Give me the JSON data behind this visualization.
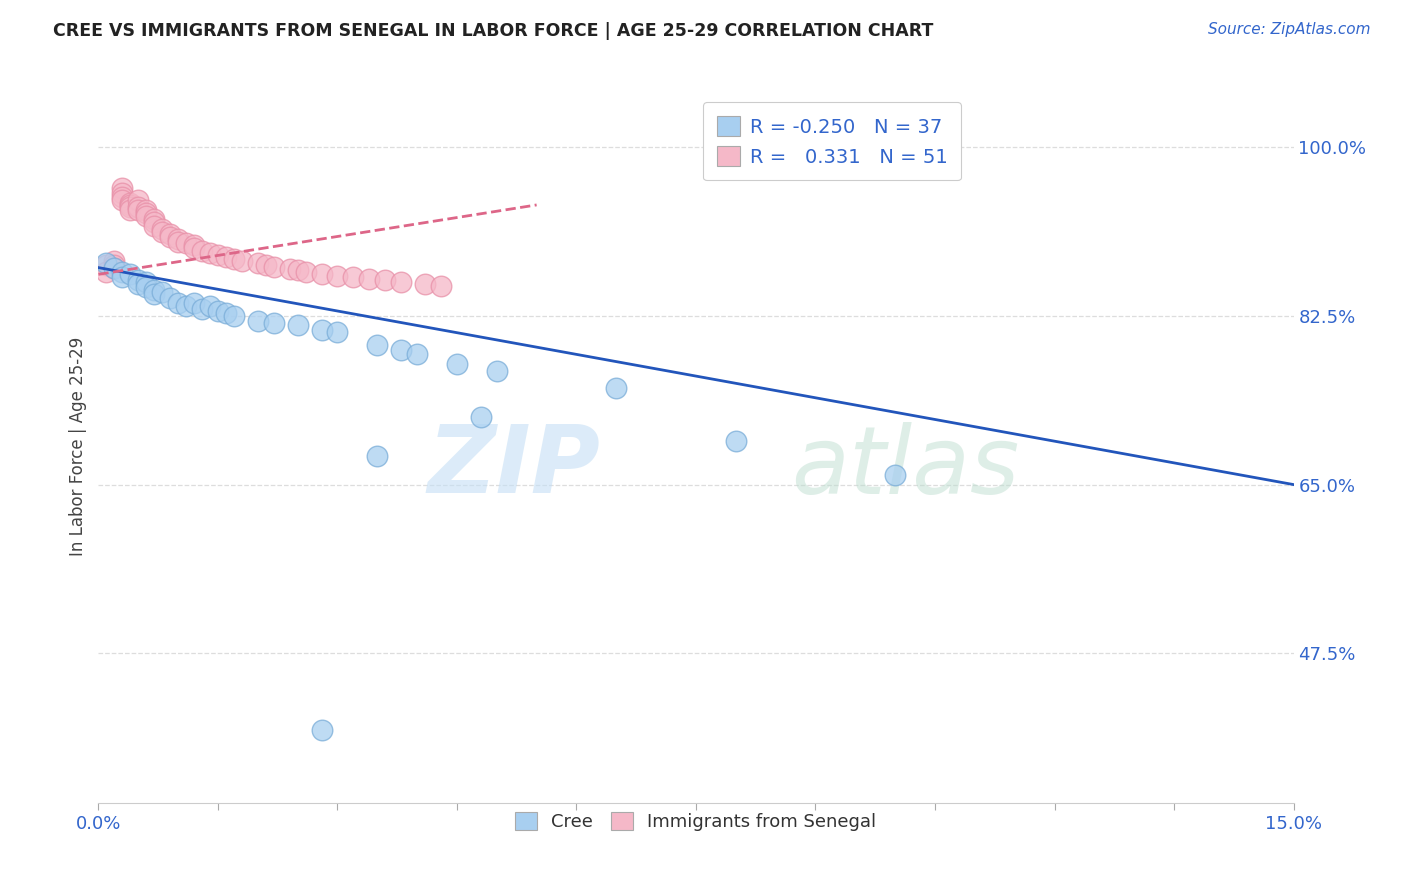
{
  "title": "CREE VS IMMIGRANTS FROM SENEGAL IN LABOR FORCE | AGE 25-29 CORRELATION CHART",
  "source_text": "Source: ZipAtlas.com",
  "ylabel": "In Labor Force | Age 25-29",
  "ytick_labels": [
    "100.0%",
    "82.5%",
    "65.0%",
    "47.5%"
  ],
  "ytick_values": [
    1.0,
    0.825,
    0.65,
    0.475
  ],
  "xmin": 0.0,
  "xmax": 0.15,
  "ymin": 0.32,
  "ymax": 1.06,
  "legend_cree_R": "-0.250",
  "legend_cree_N": "37",
  "legend_senegal_R": "0.331",
  "legend_senegal_N": "51",
  "cree_color": "#A8CFF0",
  "senegal_color": "#F5B8C8",
  "cree_edge_color": "#7AADD8",
  "senegal_edge_color": "#E890A8",
  "cree_line_color": "#2255BB",
  "senegal_line_color": "#DD6688",
  "background_color": "#FFFFFF",
  "grid_color": "#DDDDDD",
  "cree_scatter_x": [
    0.001,
    0.002,
    0.003,
    0.003,
    0.004,
    0.005,
    0.005,
    0.006,
    0.006,
    0.007,
    0.007,
    0.008,
    0.009,
    0.01,
    0.011,
    0.012,
    0.013,
    0.014,
    0.015,
    0.016,
    0.017,
    0.02,
    0.022,
    0.025,
    0.028,
    0.03,
    0.035,
    0.038,
    0.04,
    0.045,
    0.05,
    0.065,
    0.08,
    0.1,
    0.035,
    0.048,
    0.028
  ],
  "cree_scatter_y": [
    0.88,
    0.875,
    0.87,
    0.865,
    0.868,
    0.862,
    0.858,
    0.86,
    0.855,
    0.852,
    0.848,
    0.85,
    0.843,
    0.838,
    0.835,
    0.838,
    0.832,
    0.835,
    0.83,
    0.828,
    0.825,
    0.82,
    0.818,
    0.815,
    0.81,
    0.808,
    0.795,
    0.79,
    0.785,
    0.775,
    0.768,
    0.75,
    0.695,
    0.66,
    0.68,
    0.72,
    0.395
  ],
  "senegal_scatter_x": [
    0.001,
    0.001,
    0.002,
    0.002,
    0.002,
    0.003,
    0.003,
    0.003,
    0.003,
    0.004,
    0.004,
    0.004,
    0.004,
    0.005,
    0.005,
    0.005,
    0.006,
    0.006,
    0.006,
    0.007,
    0.007,
    0.007,
    0.008,
    0.008,
    0.009,
    0.009,
    0.01,
    0.01,
    0.011,
    0.012,
    0.012,
    0.013,
    0.014,
    0.015,
    0.016,
    0.017,
    0.018,
    0.02,
    0.021,
    0.022,
    0.024,
    0.025,
    0.026,
    0.028,
    0.03,
    0.032,
    0.034,
    0.036,
    0.038,
    0.041,
    0.043
  ],
  "senegal_scatter_y": [
    0.878,
    0.87,
    0.882,
    0.878,
    0.875,
    0.958,
    0.952,
    0.948,
    0.945,
    0.942,
    0.94,
    0.938,
    0.935,
    0.945,
    0.938,
    0.935,
    0.935,
    0.932,
    0.928,
    0.925,
    0.922,
    0.918,
    0.915,
    0.912,
    0.91,
    0.907,
    0.905,
    0.902,
    0.9,
    0.898,
    0.895,
    0.892,
    0.89,
    0.888,
    0.886,
    0.884,
    0.882,
    0.88,
    0.878,
    0.876,
    0.874,
    0.872,
    0.87,
    0.868,
    0.866,
    0.865,
    0.863,
    0.862,
    0.86,
    0.858,
    0.856
  ],
  "cree_line_x0": 0.0,
  "cree_line_x1": 0.15,
  "cree_line_y0": 0.875,
  "cree_line_y1": 0.65,
  "senegal_line_x0": 0.0,
  "senegal_line_x1": 0.055,
  "senegal_line_y0": 0.868,
  "senegal_line_y1": 0.94
}
